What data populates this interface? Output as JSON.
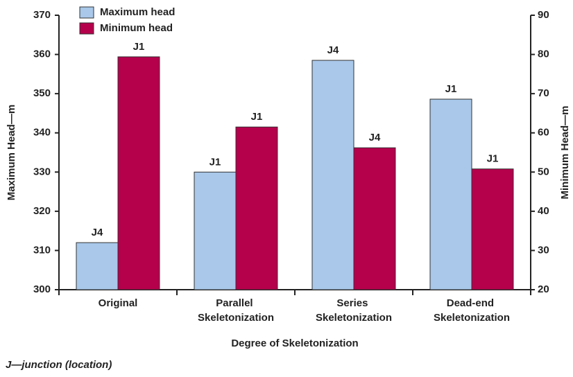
{
  "chart_data": {
    "type": "bar",
    "categories": [
      "Original",
      "Parallel Skeletonization",
      "Series Skeletonization",
      "Dead-end Skeletonization"
    ],
    "series": [
      {
        "name": "Maximum head",
        "color": "#a9c8ea",
        "values": [
          312,
          330,
          358.5,
          348.6
        ],
        "point_labels": [
          "J4",
          "J1",
          "J4",
          "J1"
        ]
      },
      {
        "name": "Minimum head",
        "color": "#b5004b",
        "axis": "y2",
        "values": [
          79.4,
          61.5,
          56.2,
          50.8
        ],
        "point_labels": [
          "J1",
          "J1",
          "J4",
          "J1"
        ]
      }
    ],
    "ylim": [
      300,
      370
    ],
    "yticks": [
      300,
      310,
      320,
      330,
      340,
      350,
      360,
      370
    ],
    "y2lim": [
      20,
      90
    ],
    "y2ticks": [
      20,
      30,
      40,
      50,
      60,
      70,
      80,
      90
    ],
    "ylabel": "Maximum Head—m",
    "y2label": "Minimum Head—m",
    "xlabel": "Degree of Skeletonization",
    "footnote": "J—junction (location)",
    "legend": "top-left"
  }
}
